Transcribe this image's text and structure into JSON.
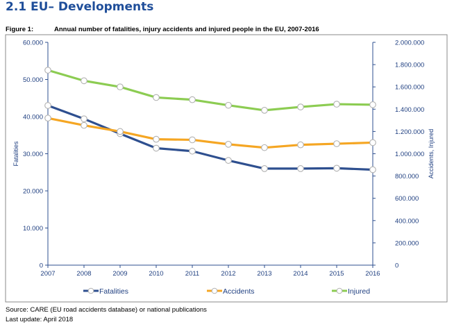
{
  "header": {
    "section_title": "2.1  EU– Developments",
    "figure_label": "Figure 1:",
    "figure_caption": "Annual number of fatalities, injury accidents and injured people in the EU, 2007-2016"
  },
  "footer": {
    "source": "Source: CARE (EU road accidents database) or national publications",
    "last_update": "Last update: April 2018"
  },
  "chart_data": {
    "type": "line",
    "x": [
      2007,
      2008,
      2009,
      2010,
      2011,
      2012,
      2013,
      2014,
      2015,
      2016
    ],
    "y_left": {
      "label": "Fatalities",
      "range": [
        0,
        60000
      ],
      "ticks": [
        0,
        10000,
        20000,
        30000,
        40000,
        50000,
        60000
      ],
      "tick_labels": [
        "0",
        "10.000",
        "20.000",
        "30.000",
        "40.000",
        "50.000",
        "60.000"
      ]
    },
    "y_right": {
      "label": "Accidents, Injured",
      "range": [
        0,
        2000000
      ],
      "ticks": [
        0,
        200000,
        400000,
        600000,
        800000,
        1000000,
        1200000,
        1400000,
        1600000,
        1800000,
        2000000
      ],
      "tick_labels": [
        "0",
        "200.000",
        "400.000",
        "600.000",
        "800.000",
        "1.000.000",
        "1.200.000",
        "1.400.000",
        "1.600.000",
        "1.800.000",
        "2.000.000"
      ]
    },
    "series": [
      {
        "name": "Fatalities",
        "axis": "left",
        "color": "#2e4f8f",
        "values": [
          43000,
          39400,
          35400,
          31500,
          30700,
          28200,
          26000,
          26000,
          26100,
          25700
        ]
      },
      {
        "name": "Accidents",
        "axis": "right",
        "color": "#f5a623",
        "values": [
          1320000,
          1255000,
          1200000,
          1130000,
          1125000,
          1085000,
          1055000,
          1080000,
          1090000,
          1100000
        ]
      },
      {
        "name": "Injured",
        "axis": "right",
        "color": "#8ccc52",
        "values": [
          1750000,
          1655000,
          1600000,
          1505000,
          1485000,
          1435000,
          1390000,
          1420000,
          1445000,
          1440000
        ]
      }
    ],
    "grid": false,
    "legend_position": "bottom"
  }
}
